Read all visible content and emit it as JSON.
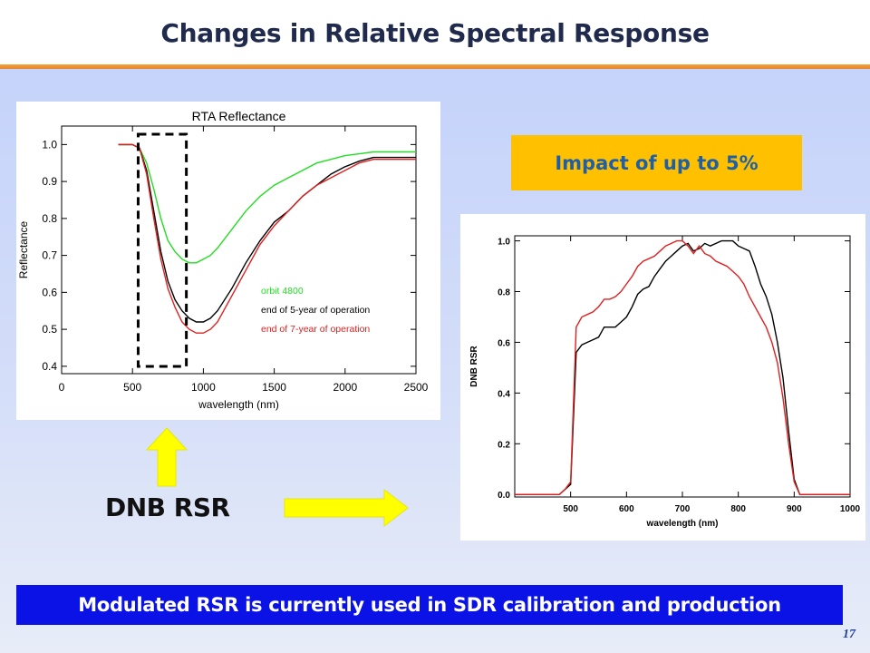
{
  "slide": {
    "title": "Changes in Relative Spectral Response",
    "impact_text": "Impact of up to 5%",
    "dnb_label": "DNB RSR",
    "bottom_banner": "Modulated RSR is currently used in SDR calibration and production",
    "page_number": "17"
  },
  "colors": {
    "title_rule": "#e7842a",
    "impact_bg": "#ffc000",
    "impact_text": "#1f5fa8",
    "banner_bg": "#0a12e6",
    "arrow": "#ffff00"
  },
  "chart_data": [
    {
      "type": "line",
      "title": "RTA Reflectance",
      "xlabel": "wavelength (nm)",
      "ylabel": "Reflectance",
      "xlim": [
        0,
        2500
      ],
      "ylim": [
        0.38,
        1.05
      ],
      "xticks": [
        0,
        500,
        1000,
        1500,
        2000,
        2500
      ],
      "yticks": [
        0.4,
        0.5,
        0.6,
        0.7,
        0.8,
        0.9,
        1.0
      ],
      "ytick_labels": [
        "0.4",
        "0.5",
        "0.6",
        "0.7",
        "0.8",
        "0.9",
        "1.0"
      ],
      "legend_position": "center-right",
      "highlight_box_x": [
        540,
        880
      ],
      "series": [
        {
          "name": "orbit 4800",
          "color": "#22dd22",
          "x": [
            400,
            500,
            550,
            600,
            650,
            700,
            750,
            800,
            850,
            900,
            950,
            1000,
            1050,
            1100,
            1200,
            1300,
            1400,
            1500,
            1600,
            1700,
            1800,
            1900,
            2000,
            2100,
            2200,
            2300,
            2400,
            2500
          ],
          "y": [
            1.0,
            1.0,
            0.99,
            0.95,
            0.88,
            0.8,
            0.74,
            0.71,
            0.69,
            0.68,
            0.68,
            0.69,
            0.7,
            0.72,
            0.77,
            0.82,
            0.86,
            0.89,
            0.91,
            0.93,
            0.95,
            0.96,
            0.97,
            0.975,
            0.98,
            0.98,
            0.98,
            0.98
          ]
        },
        {
          "name": "end of 5-year of operation",
          "color": "#000000",
          "x": [
            400,
            500,
            550,
            600,
            650,
            700,
            750,
            800,
            850,
            900,
            950,
            1000,
            1050,
            1100,
            1200,
            1300,
            1400,
            1500,
            1600,
            1700,
            1800,
            1900,
            2000,
            2100,
            2200,
            2300,
            2400,
            2500
          ],
          "y": [
            1.0,
            1.0,
            0.99,
            0.93,
            0.82,
            0.71,
            0.63,
            0.58,
            0.55,
            0.53,
            0.52,
            0.52,
            0.53,
            0.55,
            0.61,
            0.68,
            0.74,
            0.79,
            0.82,
            0.86,
            0.89,
            0.92,
            0.94,
            0.955,
            0.965,
            0.965,
            0.965,
            0.965
          ]
        },
        {
          "name": "end of 7-year of operation",
          "color": "#e02020",
          "x": [
            400,
            500,
            550,
            600,
            650,
            700,
            750,
            800,
            850,
            900,
            950,
            1000,
            1050,
            1100,
            1200,
            1300,
            1400,
            1500,
            1600,
            1700,
            1800,
            1900,
            2000,
            2100,
            2200,
            2300,
            2400,
            2500
          ],
          "y": [
            1.0,
            1.0,
            0.99,
            0.92,
            0.8,
            0.69,
            0.61,
            0.56,
            0.52,
            0.5,
            0.49,
            0.49,
            0.5,
            0.52,
            0.59,
            0.66,
            0.73,
            0.78,
            0.82,
            0.86,
            0.89,
            0.91,
            0.93,
            0.95,
            0.96,
            0.96,
            0.96,
            0.96
          ]
        }
      ]
    },
    {
      "type": "line",
      "title": "",
      "xlabel": "wavelength (nm)",
      "ylabel": "DNB RSR",
      "xlim": [
        400,
        1000
      ],
      "ylim": [
        -0.01,
        1.02
      ],
      "xticks": [
        500,
        600,
        700,
        800,
        900,
        1000
      ],
      "yticks": [
        0.0,
        0.2,
        0.4,
        0.6,
        0.8,
        1.0
      ],
      "ytick_labels": [
        "0.0",
        "0.2",
        "0.4",
        "0.6",
        "0.8",
        "1.0"
      ],
      "series": [
        {
          "color": "#000000",
          "x": [
            400,
            480,
            490,
            500,
            510,
            520,
            530,
            540,
            550,
            560,
            570,
            580,
            590,
            600,
            610,
            620,
            630,
            640,
            650,
            660,
            670,
            680,
            690,
            700,
            710,
            720,
            730,
            740,
            750,
            760,
            770,
            780,
            790,
            800,
            810,
            820,
            830,
            840,
            850,
            860,
            870,
            880,
            890,
            900,
            910,
            1000
          ],
          "y": [
            0.0,
            0.0,
            0.02,
            0.04,
            0.56,
            0.59,
            0.6,
            0.61,
            0.62,
            0.66,
            0.66,
            0.66,
            0.68,
            0.7,
            0.74,
            0.79,
            0.81,
            0.82,
            0.86,
            0.89,
            0.92,
            0.94,
            0.96,
            0.98,
            0.99,
            0.96,
            0.97,
            0.99,
            0.98,
            0.99,
            1.0,
            1.0,
            1.0,
            0.98,
            0.97,
            0.96,
            0.9,
            0.83,
            0.78,
            0.71,
            0.6,
            0.46,
            0.25,
            0.06,
            0.0,
            0.0
          ]
        },
        {
          "color": "#e02020",
          "x": [
            400,
            480,
            490,
            500,
            510,
            520,
            530,
            540,
            550,
            560,
            570,
            580,
            590,
            600,
            610,
            620,
            630,
            640,
            650,
            660,
            670,
            680,
            690,
            700,
            710,
            720,
            730,
            740,
            750,
            760,
            770,
            780,
            790,
            800,
            810,
            820,
            830,
            840,
            850,
            860,
            870,
            880,
            890,
            900,
            910,
            1000
          ],
          "y": [
            0.0,
            0.0,
            0.02,
            0.05,
            0.66,
            0.7,
            0.71,
            0.72,
            0.74,
            0.77,
            0.77,
            0.78,
            0.8,
            0.83,
            0.86,
            0.9,
            0.92,
            0.93,
            0.94,
            0.96,
            0.98,
            0.99,
            1.0,
            1.0,
            0.98,
            0.95,
            0.98,
            0.95,
            0.94,
            0.92,
            0.91,
            0.9,
            0.88,
            0.86,
            0.83,
            0.78,
            0.74,
            0.7,
            0.66,
            0.6,
            0.52,
            0.38,
            0.2,
            0.05,
            0.0,
            0.0
          ]
        }
      ]
    }
  ]
}
